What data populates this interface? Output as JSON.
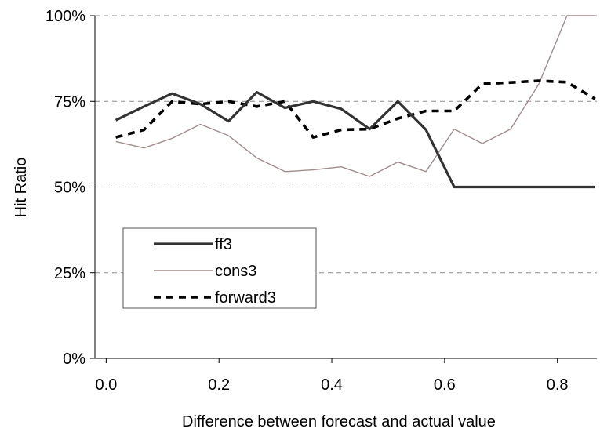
{
  "chart_data": {
    "type": "line",
    "title": "",
    "xlabel": "Difference between forecast and actual value",
    "ylabel": "Hit Ratio",
    "xlim": [
      -0.02,
      0.87
    ],
    "ylim": [
      0,
      1
    ],
    "xticks": [
      0.0,
      0.2,
      0.4,
      0.6,
      0.8
    ],
    "xtick_labels": [
      "0.0",
      "0.2",
      "0.4",
      "0.6",
      "0.8"
    ],
    "yticks": [
      0,
      0.25,
      0.5,
      0.75,
      1.0
    ],
    "ytick_labels": [
      "0%",
      "25%",
      "50%",
      "75%",
      "100%"
    ],
    "grid": "horizontal dashed",
    "legend_position": "lower-left",
    "x": [
      0.017,
      0.067,
      0.117,
      0.167,
      0.217,
      0.267,
      0.317,
      0.367,
      0.417,
      0.467,
      0.517,
      0.567,
      0.617,
      0.667,
      0.717,
      0.767,
      0.817,
      0.867
    ],
    "series": [
      {
        "name": "ff3",
        "color": "#333333",
        "style": "solid-thick",
        "values": [
          0.695,
          0.735,
          0.773,
          0.742,
          0.692,
          0.777,
          0.731,
          0.75,
          0.728,
          0.669,
          0.75,
          0.667,
          0.5,
          0.5,
          0.5,
          0.5,
          0.5,
          0.5
        ]
      },
      {
        "name": "cons3",
        "color": "#a08c8c",
        "style": "solid-thin",
        "values": [
          0.633,
          0.614,
          0.642,
          0.683,
          0.65,
          0.585,
          0.545,
          0.55,
          0.559,
          0.531,
          0.573,
          0.545,
          0.669,
          0.627,
          0.669,
          0.8,
          1.0,
          1.0
        ]
      },
      {
        "name": "forward3",
        "color": "#000000",
        "style": "dashed-thick",
        "values": [
          0.645,
          0.667,
          0.75,
          0.742,
          0.75,
          0.735,
          0.75,
          0.645,
          0.667,
          0.669,
          0.7,
          0.722,
          0.722,
          0.801,
          0.805,
          0.81,
          0.806,
          0.757
        ]
      }
    ]
  }
}
